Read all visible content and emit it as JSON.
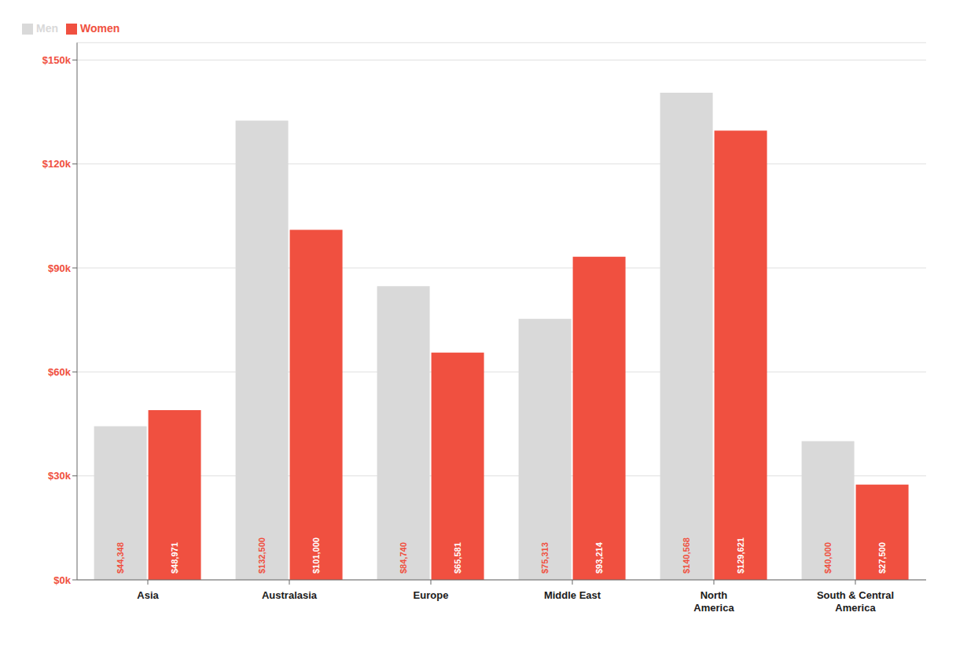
{
  "chart_data": {
    "type": "bar",
    "categories": [
      "Asia",
      "Australasia",
      "Europe",
      "Middle East",
      "North\nAmerica",
      "South & Central\nAmerica"
    ],
    "series": [
      {
        "name": "Men",
        "color": "#d9d9d9",
        "values": [
          44348,
          132500,
          84740,
          75313,
          140568,
          40000
        ],
        "value_labels": [
          "$44,348",
          "$132,500",
          "$84,740",
          "$75,313",
          "$140,568",
          "$40,000"
        ]
      },
      {
        "name": "Women",
        "color": "#f05040",
        "values": [
          48971,
          101000,
          65581,
          93214,
          129621,
          27500
        ],
        "value_labels": [
          "$48,971",
          "$101,000",
          "$65,581",
          "$93,214",
          "$129,621",
          "$27,500"
        ]
      }
    ],
    "ylim": [
      0,
      155000
    ],
    "yticks": [
      {
        "value": 0,
        "label": "$0k"
      },
      {
        "value": 30000,
        "label": "$30k"
      },
      {
        "value": 60000,
        "label": "$60k"
      },
      {
        "value": 90000,
        "label": "$90k"
      },
      {
        "value": 120000,
        "label": "$120k"
      },
      {
        "value": 150000,
        "label": "$150k"
      }
    ],
    "grid": true,
    "legend": "upper left",
    "data_labels": true
  }
}
